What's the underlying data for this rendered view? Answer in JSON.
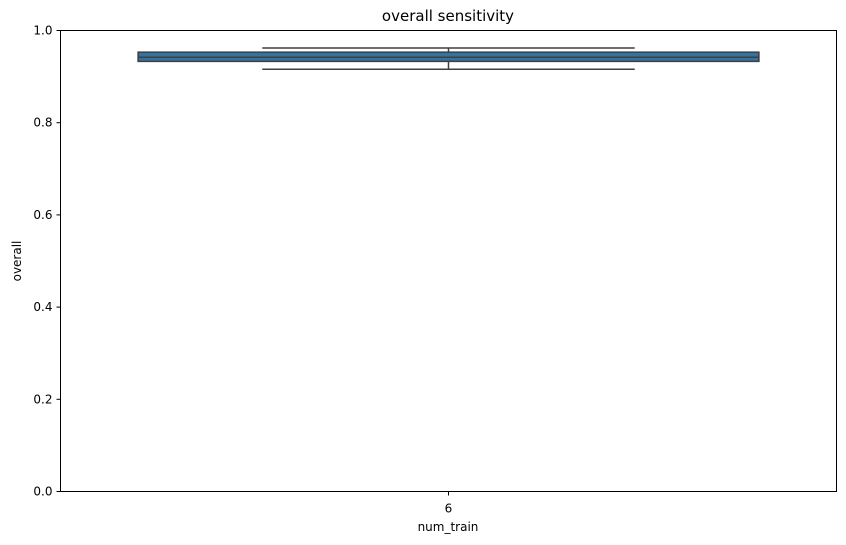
{
  "chart_data": {
    "type": "box",
    "title": "overall sensitivity",
    "xlabel": "num_train",
    "ylabel": "overall",
    "ylim": [
      0,
      1
    ],
    "yticks": [
      "0.0",
      "0.2",
      "0.4",
      "0.6",
      "0.8",
      "1.0"
    ],
    "categories": [
      "6"
    ],
    "boxes": [
      {
        "category": "6",
        "whisker_low": 0.916,
        "q1": 0.933,
        "median": 0.942,
        "q3": 0.953,
        "whisker_high": 0.962
      }
    ],
    "box_color": "#3274a1",
    "line_color": "#3f3f3f",
    "grid": false,
    "legend": "none"
  }
}
